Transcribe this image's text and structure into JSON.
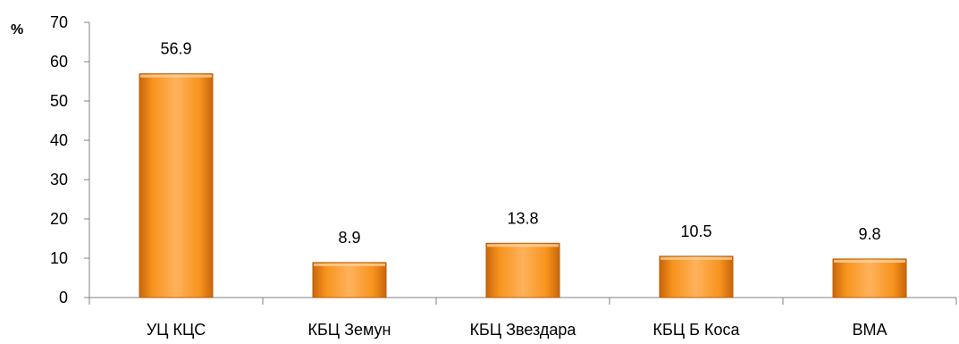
{
  "chart_data": {
    "type": "bar",
    "title": "",
    "xlabel": "",
    "ylabel": "%",
    "ylim": [
      0,
      70
    ],
    "yticks": [
      0,
      10,
      20,
      30,
      40,
      50,
      60,
      70
    ],
    "categories": [
      "УЦ КЦС",
      "КБЦ Земун",
      "КБЦ Звездара",
      "КБЦ Б Коса",
      "ВМА"
    ],
    "series": [
      {
        "values": [
          56.9,
          8.9,
          13.8,
          10.5,
          9.8
        ]
      }
    ],
    "data_labels": [
      "56.9",
      "8.9",
      "13.8",
      "10.5",
      "9.8"
    ],
    "grid": false,
    "legend": "none",
    "colors": {
      "bar_light": "#FFB25C",
      "bar_mid": "#F7941D",
      "bar_dark": "#C9660A",
      "axis": "#808080"
    }
  }
}
